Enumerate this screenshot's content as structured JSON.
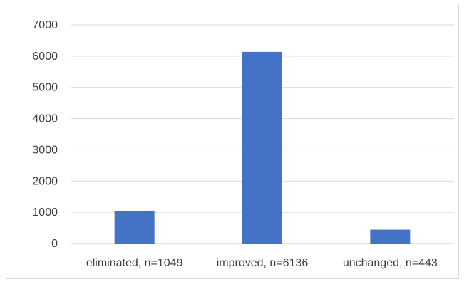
{
  "chart_data": {
    "type": "bar",
    "categories": [
      "eliminated, n=1049",
      "improved, n=6136",
      "unchanged, n=443"
    ],
    "values": [
      1049,
      6136,
      443
    ],
    "ylim": [
      0,
      7000
    ],
    "yticks": [
      0,
      1000,
      2000,
      3000,
      4000,
      5000,
      6000,
      7000
    ],
    "grid": true,
    "legend": "none",
    "colors": {
      "bar": "#4472c4",
      "grid": "#d9d9d9",
      "axis": "#bfbfbf",
      "text": "#404040"
    }
  }
}
